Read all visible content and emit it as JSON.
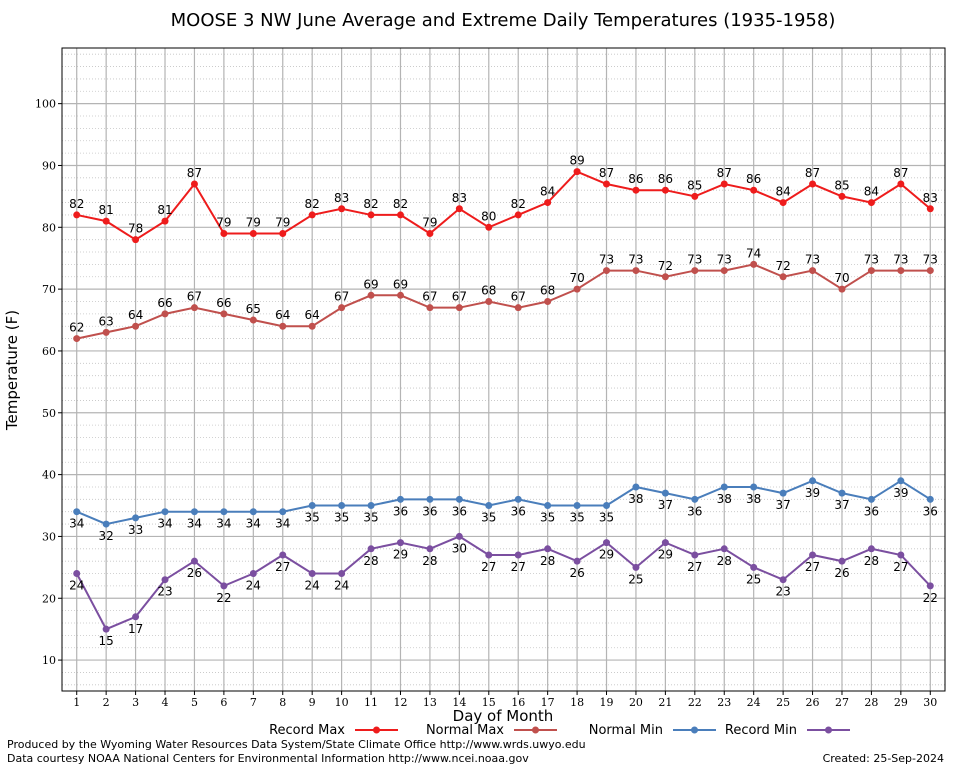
{
  "footer": {
    "credit_1": "Produced by the Wyoming Water Resources Data System/State Climate Office http://www.wrds.uwyo.edu",
    "credit_2": "Data courtesy NOAA National Centers for Environmental Information http://www.ncei.noaa.gov",
    "created": "Created:  25-Sep-2024"
  },
  "chart_data": {
    "type": "line",
    "title": "MOOSE 3 NW June Average and Extreme Daily Temperatures (1935-1958)",
    "xlabel": "Day of Month",
    "ylabel": "Temperature (F)",
    "xlim": [
      0.5,
      30.5
    ],
    "ylim": [
      5,
      109
    ],
    "yticks": [
      10,
      20,
      30,
      40,
      50,
      60,
      70,
      80,
      90,
      100
    ],
    "x": [
      1,
      2,
      3,
      4,
      5,
      6,
      7,
      8,
      9,
      10,
      11,
      12,
      13,
      14,
      15,
      16,
      17,
      18,
      19,
      20,
      21,
      22,
      23,
      24,
      25,
      26,
      27,
      28,
      29,
      30
    ],
    "grid": true,
    "legend_position": "bottom",
    "series": [
      {
        "name": "Record Max",
        "color": "#ee1c1c",
        "label_pos": "above",
        "values": [
          82,
          81,
          78,
          81,
          87,
          79,
          79,
          79,
          82,
          83,
          82,
          82,
          79,
          83,
          80,
          82,
          84,
          89,
          87,
          86,
          86,
          85,
          87,
          86,
          84,
          87,
          85,
          84,
          87,
          83
        ]
      },
      {
        "name": "Normal Max",
        "color": "#c0504d",
        "label_pos": "above",
        "values": [
          62,
          63,
          64,
          66,
          67,
          66,
          65,
          64,
          64,
          67,
          69,
          69,
          67,
          67,
          68,
          67,
          68,
          70,
          73,
          73,
          72,
          73,
          73,
          74,
          72,
          73,
          70,
          73,
          73,
          73
        ]
      },
      {
        "name": "Normal Min",
        "color": "#4a7ebb",
        "label_pos": "below",
        "values": [
          34,
          32,
          33,
          34,
          34,
          34,
          34,
          34,
          35,
          35,
          35,
          36,
          36,
          36,
          35,
          36,
          35,
          35,
          35,
          38,
          37,
          36,
          38,
          38,
          37,
          39,
          37,
          36,
          39,
          36
        ]
      },
      {
        "name": "Record Min",
        "color": "#7b4fa0",
        "label_pos": "below",
        "values": [
          24,
          15,
          17,
          23,
          26,
          22,
          24,
          27,
          24,
          24,
          28,
          29,
          28,
          30,
          27,
          27,
          28,
          26,
          29,
          25,
          29,
          27,
          28,
          25,
          23,
          27,
          26,
          28,
          27,
          22
        ]
      }
    ]
  }
}
